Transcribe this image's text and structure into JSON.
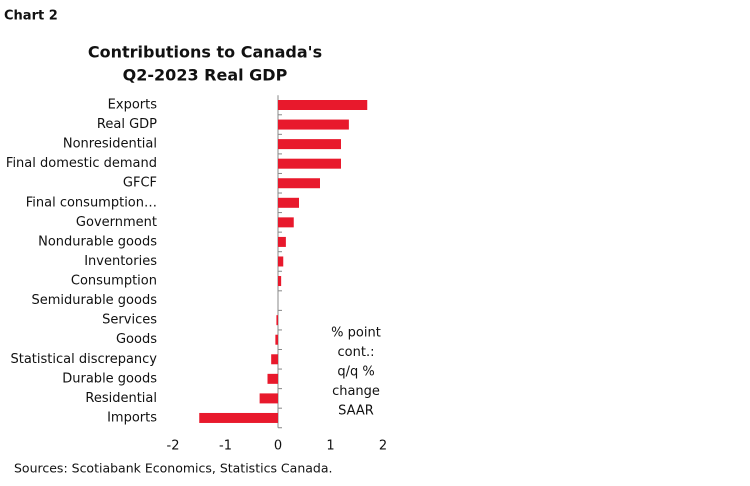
{
  "chart_data": {
    "type": "bar",
    "orientation": "horizontal",
    "label": "Chart 2",
    "title": [
      "Contributions to Canada's",
      "Q2-2023 Real GDP"
    ],
    "categories": [
      "Exports",
      "Real GDP",
      "Nonresidential",
      "Final domestic demand",
      "GFCF",
      "Final consumption…",
      "Government",
      "Nondurable goods",
      "Inventories",
      "Consumption",
      "Semidurable goods",
      "Services",
      "Goods",
      "Statistical discrepancy",
      "Durable goods",
      "Residential",
      "Imports"
    ],
    "values": [
      1.7,
      1.35,
      1.2,
      1.2,
      0.8,
      0.4,
      0.3,
      0.15,
      0.1,
      0.06,
      0.0,
      -0.03,
      -0.05,
      -0.13,
      -0.2,
      -0.35,
      -1.5
    ],
    "color": "#e8192c",
    "xlim": [
      -2,
      2
    ],
    "xticks": [
      -2,
      -1,
      0,
      1,
      2
    ],
    "annotation": [
      "% point",
      "cont.:",
      "q/q %",
      "change",
      "SAAR"
    ],
    "source": "Sources: Scotiabank Economics, Statistics Canada."
  }
}
